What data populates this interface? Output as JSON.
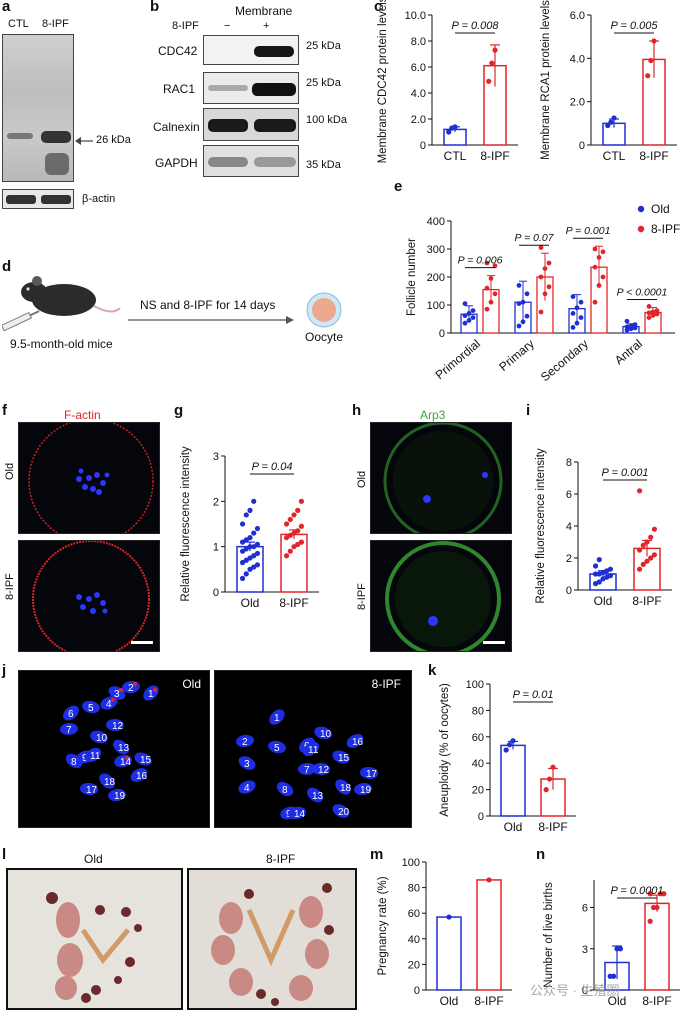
{
  "panels": {
    "a": {
      "label": "a",
      "lanes": [
        "CTL",
        "8-IPF"
      ],
      "band": "26 kDa",
      "loading": "β-actin"
    },
    "b": {
      "label": "b",
      "header": "Membrane",
      "treatment_row": "8-IPF",
      "signs": [
        "−",
        "+"
      ],
      "rows": [
        {
          "name": "CDC42",
          "kda": "25 kDa"
        },
        {
          "name": "RAC1",
          "kda": "25 kDa"
        },
        {
          "name": "Calnexin",
          "kda": "100 kDa"
        },
        {
          "name": "GAPDH",
          "kda": "35 kDa"
        }
      ]
    },
    "c": {
      "label": "c"
    },
    "d": {
      "label": "d",
      "arrow_text": "NS and 8-IPF for 14 days",
      "mouse_caption": "9.5-month-old mice",
      "cell_caption": "Oocyte"
    },
    "e": {
      "label": "e"
    },
    "f": {
      "label": "f",
      "stain": "F-actin",
      "rows": [
        "Old",
        "8-IPF"
      ]
    },
    "g": {
      "label": "g"
    },
    "h": {
      "label": "h",
      "stain": "Arp3",
      "rows": [
        "Old",
        "8-IPF"
      ]
    },
    "i": {
      "label": "i"
    },
    "j": {
      "label": "j",
      "left_title": "Old",
      "right_title": "8-IPF",
      "left_numbers": [
        "1",
        "2",
        "3",
        "4",
        "5",
        "6",
        "7",
        "8",
        "9",
        "10",
        "11",
        "12",
        "13",
        "14",
        "15",
        "16",
        "17",
        "18",
        "19"
      ],
      "right_numbers": [
        "1",
        "2",
        "3",
        "4",
        "5",
        "6",
        "7",
        "8",
        "9",
        "10",
        "11",
        "12",
        "13",
        "14",
        "15",
        "16",
        "17",
        "18",
        "19",
        "20"
      ]
    },
    "k": {
      "label": "k"
    },
    "l": {
      "label": "l",
      "left_title": "Old",
      "right_title": "8-IPF"
    },
    "m": {
      "label": "m"
    },
    "n": {
      "label": "n"
    }
  },
  "watermark": "公众号 · 生殖圈",
  "colors": {
    "old": "#1f2fd1",
    "ipf": "#e0262b",
    "f_actin": "#e0262b",
    "arp3": "#3aa53a"
  },
  "chart_data": [
    {
      "id": "c1",
      "type": "bar",
      "categories": [
        "CTL",
        "8-IPF"
      ],
      "values": [
        1.2,
        6.1
      ],
      "points": [
        [
          1.0,
          1.3,
          1.4
        ],
        [
          4.9,
          6.3,
          7.3
        ]
      ],
      "errors": [
        0.2,
        1.6
      ],
      "ylabel": "Membrane CDC42 protein levels",
      "ylim": [
        0,
        10.0
      ],
      "yticks": [
        "0",
        "2.0",
        "4.0",
        "6.0",
        "8.0",
        "10.0"
      ],
      "annotation": "P = 0.008"
    },
    {
      "id": "c2",
      "type": "bar",
      "categories": [
        "CTL",
        "8-IPF"
      ],
      "values": [
        1.0,
        3.95
      ],
      "points": [
        [
          0.9,
          1.05,
          1.25
        ],
        [
          3.2,
          3.9,
          4.8
        ]
      ],
      "errors": [
        0.2,
        0.85
      ],
      "ylabel": "Membrane RCA1 protein levels",
      "ylim": [
        0,
        6.0
      ],
      "yticks": [
        "0",
        "2.0",
        "4.0",
        "6.0"
      ],
      "annotation": "P = 0.005"
    },
    {
      "id": "e",
      "type": "bar",
      "categories": [
        "Primordial",
        "Primary",
        "Secondary",
        "Antral"
      ],
      "series": [
        {
          "name": "Old",
          "values": [
            67,
            110,
            87,
            23
          ],
          "errors": [
            30,
            75,
            50,
            10
          ],
          "points": [
            [
              35,
              45,
              55,
              62,
              70,
              80,
              105
            ],
            [
              25,
              40,
              60,
              105,
              110,
              140,
              170
            ],
            [
              20,
              35,
              55,
              70,
              90,
              110,
              130
            ],
            [
              10,
              15,
              18,
              22,
              25,
              30,
              42
            ]
          ]
        },
        {
          "name": "8-IPF",
          "values": [
            155,
            200,
            235,
            73
          ],
          "errors": [
            50,
            85,
            75,
            18
          ],
          "points": [
            [
              85,
              110,
              140,
              160,
              195,
              240,
              250
            ],
            [
              75,
              140,
              165,
              200,
              230,
              250,
              305
            ],
            [
              110,
              170,
              200,
              235,
              270,
              290,
              300
            ],
            [
              55,
              63,
              68,
              72,
              75,
              80,
              95
            ]
          ]
        }
      ],
      "ylabel": "Follicle number",
      "ylim": [
        0,
        400
      ],
      "yticks": [
        "0",
        "100",
        "200",
        "300",
        "400"
      ],
      "annotations": [
        "P = 0.006",
        "P = 0.07",
        "P = 0.001",
        "P < 0.0001"
      ],
      "legend": "top-right"
    },
    {
      "id": "g",
      "type": "bar",
      "categories": [
        "Old",
        "8-IPF"
      ],
      "values": [
        1.0,
        1.27
      ],
      "errors": [
        0.1,
        0.1
      ],
      "points": [
        [
          0.3,
          0.4,
          0.5,
          0.55,
          0.6,
          0.65,
          0.7,
          0.75,
          0.8,
          0.85,
          0.9,
          0.95,
          1.0,
          1.0,
          1.05,
          1.1,
          1.15,
          1.2,
          1.3,
          1.4,
          1.5,
          1.7,
          1.8,
          2.0
        ],
        [
          0.8,
          0.9,
          1.0,
          1.05,
          1.1,
          1.2,
          1.25,
          1.3,
          1.35,
          1.45,
          1.5,
          1.6,
          1.7,
          1.8,
          2.0
        ]
      ],
      "ylabel": "Relative fluorescence intensity",
      "ylim": [
        0,
        3
      ],
      "yticks": [
        "0",
        "1",
        "2",
        "3"
      ],
      "annotation": "P = 0.04"
    },
    {
      "id": "i",
      "type": "bar",
      "categories": [
        "Old",
        "8-IPF"
      ],
      "values": [
        1.0,
        2.6
      ],
      "errors": [
        0.2,
        0.5
      ],
      "points": [
        [
          0.4,
          0.5,
          0.7,
          0.8,
          0.9,
          1.0,
          1.0,
          1.1,
          1.2,
          1.3,
          1.5,
          1.9
        ],
        [
          1.3,
          1.6,
          1.8,
          2.0,
          2.2,
          2.5,
          2.8,
          3.0,
          3.3,
          3.8,
          6.2
        ]
      ],
      "ylabel": "Relative fluorescence intensity",
      "ylim": [
        0,
        8
      ],
      "yticks": [
        "0",
        "2",
        "4",
        "6",
        "8"
      ],
      "annotation": "P = 0.001"
    },
    {
      "id": "k",
      "type": "bar",
      "categories": [
        "Old",
        "8-IPF"
      ],
      "values": [
        53.5,
        28
      ],
      "errors": [
        3,
        8
      ],
      "points": [
        [
          50,
          54,
          57
        ],
        [
          20,
          28,
          37
        ]
      ],
      "ylabel": "Aneuploidy (% of oocytes)",
      "ylim": [
        0,
        100
      ],
      "yticks": [
        "0",
        "20",
        "40",
        "60",
        "80",
        "100"
      ],
      "annotation": "P = 0.01"
    },
    {
      "id": "m",
      "type": "bar",
      "categories": [
        "Old",
        "8-IPF"
      ],
      "values": [
        57,
        86
      ],
      "points": [
        [
          57
        ],
        [
          86
        ]
      ],
      "ylabel": "Pregnancy rate (%)",
      "ylim": [
        0,
        100
      ],
      "yticks": [
        "0",
        "20",
        "40",
        "60",
        "80",
        "100"
      ]
    },
    {
      "id": "n",
      "type": "bar",
      "categories": [
        "Old",
        "8-IPF"
      ],
      "values": [
        2.0,
        6.3
      ],
      "errors": [
        1.2,
        0.6
      ],
      "points": [
        [
          1,
          1,
          3,
          3
        ],
        [
          5,
          6,
          6,
          7,
          7,
          7
        ]
      ],
      "ylabel": "Number of live births",
      "ylim": [
        0,
        8
      ],
      "yticks": [
        "0",
        "3",
        "6"
      ],
      "ytick_values": [
        0,
        3,
        6
      ],
      "annotation": "P = 0.0001"
    }
  ]
}
